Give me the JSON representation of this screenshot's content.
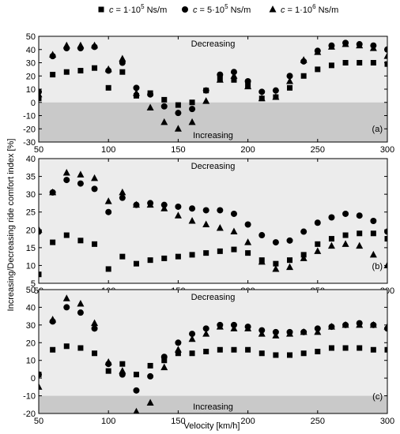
{
  "ylabel": "Increasing/Decreasing ride comfort index [%]",
  "xlabel": "Velocity [km/h]",
  "legend": [
    {
      "marker": "square",
      "prefix": "c",
      "text": " = 1·10",
      "exp": "5",
      "unit": " Ns/m"
    },
    {
      "marker": "circle",
      "prefix": "c",
      "text": " = 5·10",
      "exp": "5",
      "unit": " Ns/m"
    },
    {
      "marker": "triangle",
      "prefix": "c",
      "text": " = 1·10",
      "exp": "6",
      "unit": " Ns/m"
    }
  ],
  "colors": {
    "decreasing_bg": "#ececec",
    "increasing_bg": "#c9c9c9",
    "marker": "#000000"
  },
  "chart_data": [
    {
      "type": "scatter",
      "panel_label": "(a)",
      "annotations": {
        "top": "Decreasing",
        "bottom": "Increasing"
      },
      "xlim": [
        50,
        300
      ],
      "ylim": [
        -30,
        50
      ],
      "xticks": [
        50,
        100,
        150,
        200,
        250,
        300
      ],
      "yticks": [
        -30,
        -20,
        -10,
        0,
        10,
        20,
        30,
        40,
        50
      ],
      "increasing_below": 0,
      "x": [
        50,
        60,
        70,
        80,
        90,
        100,
        110,
        120,
        130,
        140,
        150,
        160,
        170,
        180,
        190,
        200,
        210,
        220,
        230,
        240,
        250,
        260,
        270,
        280,
        290,
        300
      ],
      "series": [
        {
          "marker": "square",
          "values": [
            3,
            21,
            23,
            24,
            26,
            11,
            23,
            5,
            7,
            2,
            -2,
            0,
            9,
            18,
            17,
            13,
            3,
            4,
            11,
            20,
            25,
            28,
            30,
            30,
            30,
            29
          ]
        },
        {
          "marker": "circle",
          "values": [
            8,
            35,
            41,
            41,
            42,
            24,
            30,
            11,
            6,
            -3,
            -8,
            -5,
            9,
            21,
            23,
            16,
            8,
            9,
            20,
            31,
            39,
            43,
            45,
            44,
            43,
            40
          ]
        },
        {
          "marker": "triangle",
          "values": [
            6,
            36,
            43,
            43,
            43,
            25,
            33,
            7,
            -4,
            -15,
            -20,
            -15,
            1,
            17,
            20,
            12,
            3,
            4,
            16,
            32,
            38,
            42,
            44,
            43,
            41,
            35
          ]
        }
      ]
    },
    {
      "type": "scatter",
      "panel_label": "(b)",
      "annotations": {
        "top": "Decreasing",
        "bottom": ""
      },
      "xlim": [
        50,
        300
      ],
      "ylim": [
        5,
        40
      ],
      "xticks": [
        50,
        100,
        150,
        200,
        250,
        300
      ],
      "yticks": [
        5,
        10,
        15,
        20,
        25,
        30,
        35,
        40
      ],
      "increasing_below": null,
      "x": [
        50,
        60,
        70,
        80,
        90,
        100,
        110,
        120,
        130,
        140,
        150,
        160,
        170,
        180,
        190,
        200,
        210,
        220,
        230,
        240,
        250,
        260,
        270,
        280,
        290,
        300
      ],
      "series": [
        {
          "marker": "square",
          "values": [
            7.5,
            16.5,
            18.5,
            17,
            16,
            9,
            12.5,
            10.5,
            11.5,
            12,
            12.5,
            13,
            13.5,
            14,
            14.5,
            13.5,
            11.5,
            10.5,
            11.5,
            13,
            16,
            17.5,
            18.5,
            19,
            19,
            17.5
          ]
        },
        {
          "marker": "circle",
          "values": [
            19.5,
            30.5,
            34,
            33,
            31.5,
            25,
            29,
            27,
            27.5,
            27,
            26.5,
            26,
            25.5,
            25.5,
            24.5,
            21.5,
            18.5,
            16.5,
            17,
            19.5,
            22,
            23.5,
            24.5,
            24,
            22.5,
            19.5
          ]
        },
        {
          "marker": "triangle",
          "values": [
            20,
            30.5,
            36,
            35.5,
            34.5,
            28,
            30.5,
            27,
            27,
            26,
            24,
            22.5,
            21.5,
            20.5,
            19.5,
            16.5,
            11,
            9,
            9.5,
            12,
            14,
            15.5,
            16,
            15.5,
            13,
            10
          ]
        }
      ]
    },
    {
      "type": "scatter",
      "panel_label": "(c)",
      "annotations": {
        "top": "Decreasing",
        "bottom": "Increasing"
      },
      "xlim": [
        50,
        300
      ],
      "ylim": [
        -20,
        50
      ],
      "xticks": [
        50,
        100,
        150,
        200,
        250,
        300
      ],
      "yticks": [
        -20,
        -10,
        0,
        10,
        20,
        30,
        40,
        50
      ],
      "increasing_below": -10,
      "x": [
        50,
        60,
        70,
        80,
        90,
        100,
        110,
        120,
        130,
        140,
        150,
        160,
        170,
        180,
        190,
        200,
        210,
        220,
        230,
        240,
        250,
        260,
        270,
        280,
        290,
        300
      ],
      "series": [
        {
          "marker": "square",
          "values": [
            2,
            16,
            18,
            17,
            14,
            4,
            8,
            2,
            7,
            10,
            14,
            14,
            15,
            16,
            16,
            16,
            14,
            13,
            13,
            14,
            15,
            17,
            17,
            17,
            16,
            16
          ]
        },
        {
          "marker": "circle",
          "values": [
            2,
            32,
            40,
            37,
            28,
            8,
            2,
            -7,
            1,
            12,
            20,
            25,
            28,
            30,
            30,
            29,
            27,
            26,
            26,
            26,
            28,
            29,
            30,
            31,
            30,
            28
          ]
        },
        {
          "marker": "triangle",
          "values": [
            -5,
            33,
            45,
            42,
            31,
            9,
            4,
            -19,
            -14,
            6,
            16,
            22,
            25,
            29,
            28,
            28,
            25,
            24,
            25,
            26,
            26,
            29,
            30,
            30,
            30,
            29
          ]
        }
      ]
    }
  ]
}
